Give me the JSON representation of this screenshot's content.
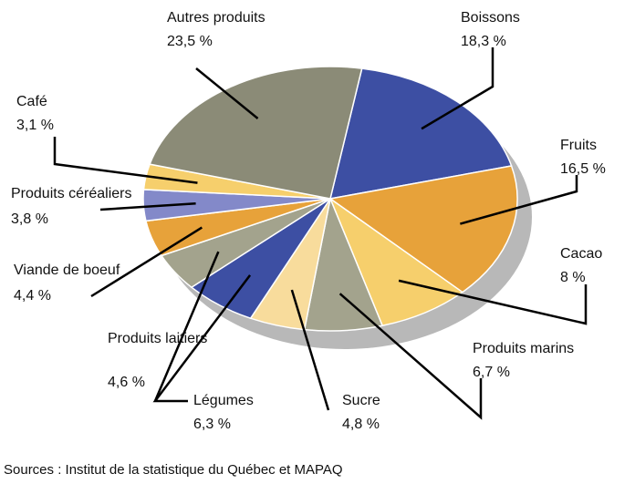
{
  "chart_data": {
    "type": "pie",
    "categories": [
      "Boissons",
      "Fruits",
      "Cacao",
      "Produits marins",
      "Sucre",
      "Légumes",
      "Produits laitiers",
      "Viande de boeuf",
      "Produits céréaliers",
      "Café",
      "Autres produits"
    ],
    "values": [
      18.3,
      16.5,
      8,
      6.7,
      4.8,
      6.3,
      4.6,
      4.4,
      3.8,
      3.1,
      23.5
    ],
    "value_labels": [
      "18,3 %",
      "16,5 %",
      "8 %",
      "6,7 %",
      "4,8 %",
      "6,3 %",
      "4,6 %",
      "4,4 %",
      "3,8 %",
      "3,1 %",
      "23,5 %"
    ],
    "colors": [
      "#3d4fa3",
      "#e7a23a",
      "#f6cf6c",
      "#a3a38d",
      "#f8dc9c",
      "#3d4fa3",
      "#a3a38d",
      "#e7a23a",
      "#8389c9",
      "#f6cf6c",
      "#8b8b77"
    ],
    "source": "Sources : Institut de la statistique du Québec et MAPAQ"
  }
}
